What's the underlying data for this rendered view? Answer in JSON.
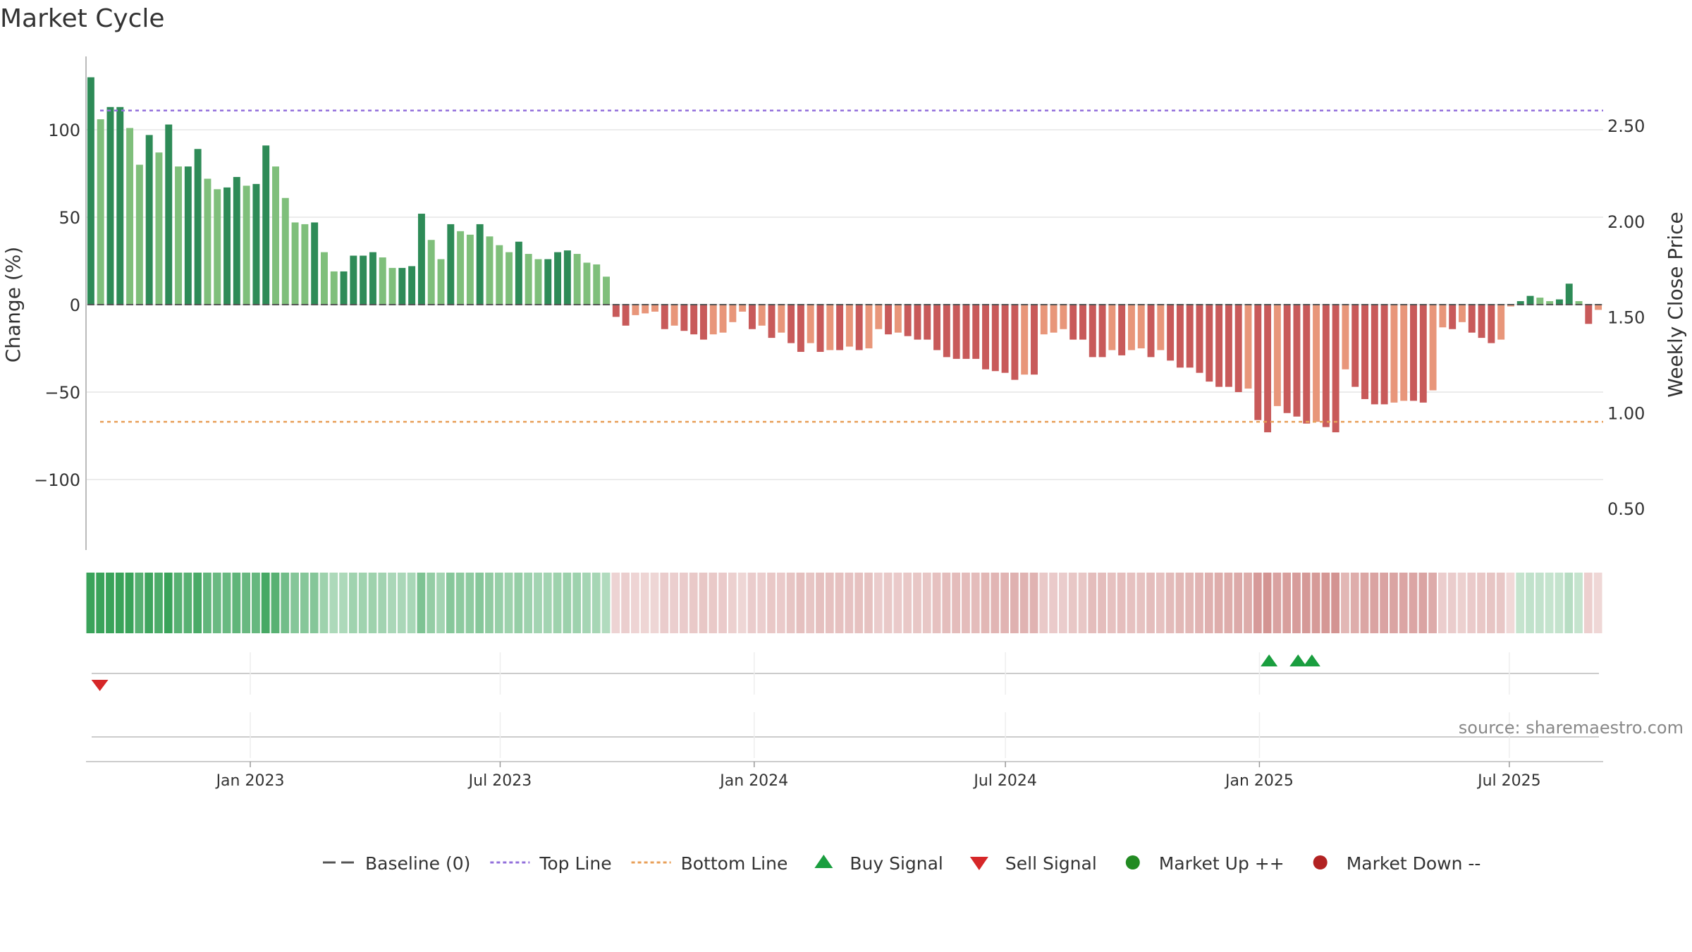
{
  "chart_data": {
    "type": "bar",
    "title": "Market Cycle",
    "ylabel_left": "Change (%)",
    "ylabel_right": "Weekly Close Price",
    "ylim_left": [
      -140,
      140
    ],
    "ylim_right": [
      0.283,
      2.861
    ],
    "yticks_left": [
      {
        "value": 100,
        "label": "100"
      },
      {
        "value": 50,
        "label": "50"
      },
      {
        "value": 0,
        "label": "0"
      },
      {
        "value": -50,
        "label": "−50"
      },
      {
        "value": -100,
        "label": "−100"
      }
    ],
    "yticks_right": [
      {
        "value": 2.5,
        "label": "2.50"
      },
      {
        "value": 2.0,
        "label": "2.00"
      },
      {
        "value": 1.5,
        "label": "1.50"
      },
      {
        "value": 1.0,
        "label": "1.00"
      },
      {
        "value": 0.5,
        "label": "0.50"
      }
    ],
    "x_start": "2022-09-04",
    "x_end": "2025-09-07",
    "grid": true,
    "xticks": [
      {
        "date": "2023-01-01",
        "label": "Jan 2023"
      },
      {
        "date": "2023-07-01",
        "label": "Jul 2023"
      },
      {
        "date": "2024-01-01",
        "label": "Jan 2024"
      },
      {
        "date": "2024-07-01",
        "label": "Jul 2024"
      },
      {
        "date": "2025-01-01",
        "label": "Jan 2025"
      },
      {
        "date": "2025-07-01",
        "label": "Jul 2025"
      }
    ],
    "top_line": 111,
    "bottom_line": -67,
    "values": [
      130,
      106,
      113,
      113,
      101,
      80,
      97,
      87,
      103,
      79,
      79,
      89,
      72,
      66,
      67,
      73,
      68,
      69,
      91,
      79,
      61,
      47,
      46,
      47,
      30,
      19,
      19,
      28,
      28,
      30,
      27,
      21,
      21,
      22,
      52,
      37,
      26,
      46,
      42,
      40,
      46,
      39,
      34,
      30,
      36,
      29,
      26,
      26,
      30,
      31,
      29,
      24,
      23,
      16,
      -7,
      -12,
      -6,
      -5,
      -4,
      -14,
      -12,
      -15,
      -17,
      -20,
      -17,
      -16,
      -10,
      -4,
      -14,
      -12,
      -19,
      -16,
      -22,
      -27,
      -22,
      -27,
      -26,
      -26,
      -24,
      -26,
      -25,
      -14,
      -17,
      -16,
      -18,
      -20,
      -20,
      -26,
      -30,
      -31,
      -31,
      -31,
      -37,
      -38,
      -39,
      -43,
      -40,
      -40,
      -17,
      -16,
      -14,
      -20,
      -20,
      -30,
      -30,
      -26,
      -29,
      -26,
      -25,
      -30,
      -26,
      -32,
      -36,
      -36,
      -39,
      -44,
      -47,
      -47,
      -50,
      -48,
      -66,
      -73,
      -58,
      -62,
      -64,
      -68,
      -67,
      -70,
      -73,
      -37,
      -47,
      -54,
      -57,
      -57,
      -56,
      -55,
      -55,
      -56,
      -49,
      -13,
      -14,
      -10,
      -16,
      -19,
      -22,
      -20,
      -1,
      2,
      5,
      4,
      2,
      3,
      12,
      2,
      -11,
      -3
    ],
    "series": [
      {
        "name": "Baseline (0)",
        "style": "dashed",
        "color": "#555555"
      },
      {
        "name": "Top Line",
        "style": "dotted",
        "color": "#9370db"
      },
      {
        "name": "Bottom Line",
        "style": "dotted",
        "color": "#e8a05a"
      },
      {
        "name": "Buy Signal",
        "marker": "triangle-up",
        "color": "#1a9e3f",
        "dates": [
          "2025-01-08",
          "2025-01-29",
          "2025-02-08"
        ]
      },
      {
        "name": "Sell Signal",
        "marker": "triangle-down",
        "color": "#d62728",
        "dates": [
          "2022-09-14"
        ]
      },
      {
        "name": "Market Up ++",
        "marker": "circle",
        "color": "#228b22"
      },
      {
        "name": "Market Down --",
        "marker": "circle",
        "color": "#b22222"
      }
    ],
    "legend_position": "bottom-center",
    "colors": {
      "up_strong": "#2e8b57",
      "up_light": "#7fbf7b",
      "down_strong": "#c85a5a",
      "down_light": "#e8967a",
      "heat_up": "#3aa35a",
      "heat_down": "#c97a78",
      "top_line": "#9370db",
      "bottom_line": "#e8a05a"
    }
  },
  "footer": {
    "source": "source: sharemaestro.com"
  }
}
